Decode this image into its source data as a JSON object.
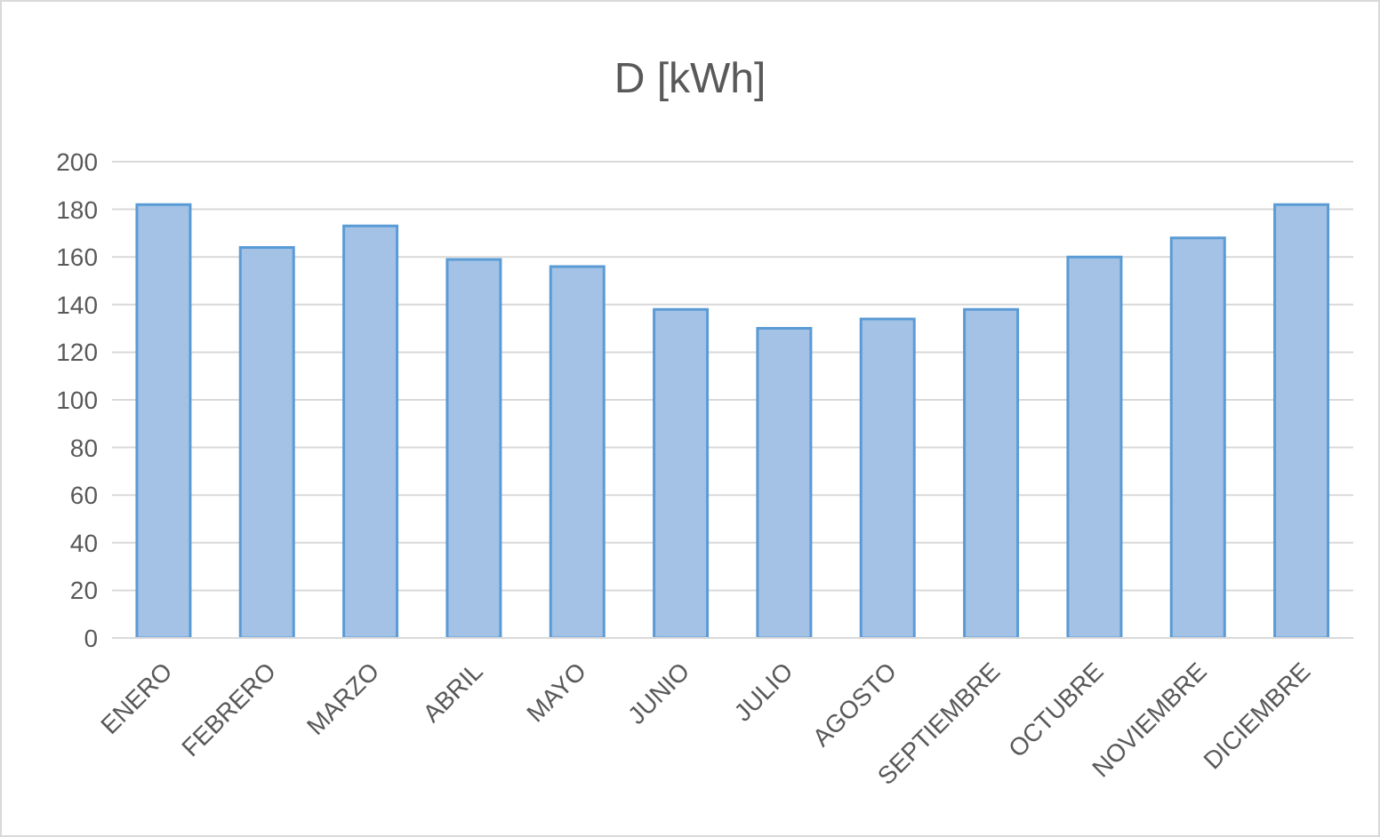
{
  "chart_data": {
    "type": "bar",
    "title": "D [kWh]",
    "categories": [
      "ENERO",
      "FEBRERO",
      "MARZO",
      "ABRIL",
      "MAYO",
      "JUNIO",
      "JULIO",
      "AGOSTO",
      "SEPTIEMBRE",
      "OCTUBRE",
      "NOVIEMBRE",
      "DICIEMBRE"
    ],
    "values": [
      182,
      164,
      173,
      159,
      156,
      138,
      130,
      134,
      138,
      160,
      168,
      182
    ],
    "color": "#a3c2e6",
    "ylim": [
      0,
      200
    ],
    "yticks": [
      0,
      20,
      40,
      60,
      80,
      100,
      120,
      140,
      160,
      180,
      200
    ],
    "grid": "y"
  }
}
